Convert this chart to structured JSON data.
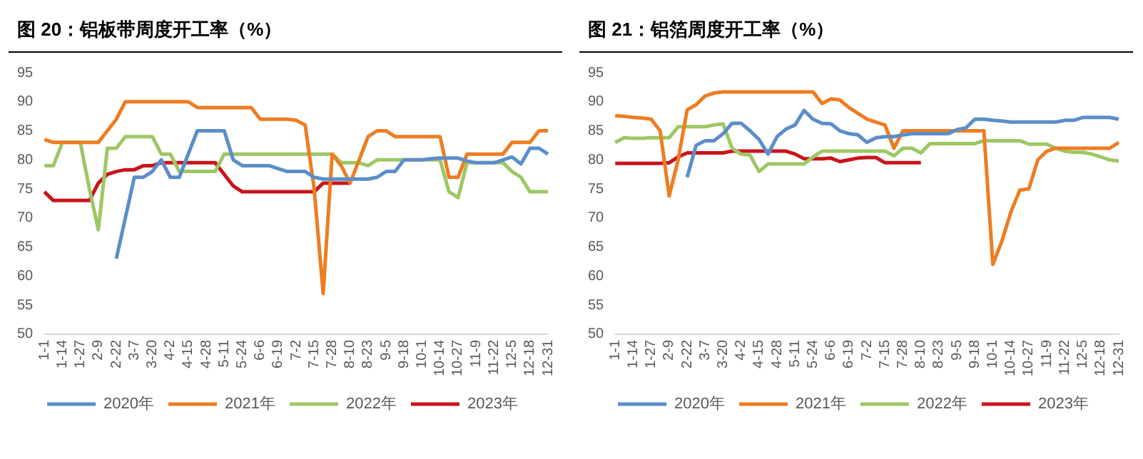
{
  "chart_data": [
    {
      "type": "line",
      "title": "图 20：铝板带周度开工率（%）",
      "categories": [
        "1-1",
        null,
        "1-14",
        null,
        "1-27",
        null,
        "2-9",
        null,
        "2-22",
        null,
        "3-7",
        null,
        "3-20",
        null,
        "4-2",
        null,
        "4-15",
        null,
        "4-28",
        null,
        "5-11",
        null,
        "5-24",
        null,
        "6-6",
        null,
        "6-19",
        null,
        "7-2",
        null,
        "7-15",
        null,
        "7-28",
        null,
        "8-10",
        null,
        "8-23",
        null,
        "9-5",
        null,
        "9-18",
        null,
        "10-1",
        null,
        "10-14",
        null,
        "10-27",
        null,
        "11-9",
        null,
        "11-22",
        null,
        "12-5",
        null,
        "12-18",
        null,
        "12-31"
      ],
      "ylim": [
        50,
        95
      ],
      "yticks": [
        50,
        55,
        60,
        65,
        70,
        75,
        80,
        85,
        90,
        95
      ],
      "legend": "bottom",
      "marker": "none",
      "series": [
        {
          "name": "2020年",
          "color": "#5b8ec9",
          "values": [
            null,
            null,
            null,
            null,
            null,
            null,
            null,
            null,
            63,
            70,
            77,
            77,
            78,
            80,
            77,
            77,
            81,
            85,
            85,
            85,
            85,
            80,
            79,
            79,
            79,
            79,
            78.5,
            78,
            78,
            78,
            77,
            76.7,
            76.7,
            76.7,
            76.7,
            76.7,
            76.7,
            77,
            78,
            78,
            80,
            80,
            80,
            80.2,
            80.3,
            80.3,
            80.3,
            79.8,
            79.5,
            79.5,
            79.5,
            80,
            80.5,
            79.3,
            82,
            82,
            81
          ]
        },
        {
          "name": "2021年",
          "color": "#ed7d22",
          "values": [
            83.5,
            83,
            83,
            83,
            83,
            83,
            83,
            85,
            87,
            90,
            90,
            90,
            90,
            90,
            90,
            90,
            90,
            89,
            89,
            89,
            89,
            89,
            89,
            89,
            87,
            87,
            87,
            87,
            86.8,
            86,
            75,
            57,
            81,
            79,
            76,
            80,
            84,
            85,
            85,
            84,
            84,
            84,
            84,
            84,
            84,
            77,
            77,
            81,
            81,
            81,
            81,
            81,
            83,
            83,
            83,
            85,
            85
          ]
        },
        {
          "name": "2022年",
          "color": "#9dc764",
          "values": [
            79,
            79,
            83,
            83,
            83,
            75,
            68,
            82,
            82,
            84,
            84,
            84,
            84,
            81,
            81,
            78,
            78,
            78,
            78,
            78,
            81,
            81,
            81,
            81,
            81,
            81,
            81,
            81,
            81,
            81,
            81,
            81,
            81,
            79.5,
            79.5,
            79.5,
            79,
            80,
            80,
            80,
            80,
            80,
            80,
            80,
            80,
            74.5,
            73.5,
            79.5,
            79.5,
            79.5,
            79.5,
            79.5,
            78,
            77,
            74.5,
            74.5,
            74.5
          ]
        },
        {
          "name": "2023年",
          "color": "#c8151b",
          "values": [
            74.5,
            73,
            73,
            73,
            73,
            73,
            76,
            77.5,
            78,
            78.3,
            78.3,
            79,
            79,
            79.5,
            79.5,
            79.5,
            79.5,
            79.5,
            79.5,
            79.5,
            77.5,
            75.5,
            74.5,
            74.5,
            74.5,
            74.5,
            74.5,
            74.5,
            74.5,
            74.5,
            74.5,
            76,
            76,
            76,
            76,
            null,
            null,
            null,
            null,
            null,
            null,
            null,
            null,
            null,
            null,
            null,
            null,
            null,
            null,
            null,
            null,
            null,
            null,
            null,
            null,
            null,
            null
          ]
        }
      ]
    },
    {
      "type": "line",
      "title": "图 21：铝箔周度开工率（%）",
      "categories": [
        "1-1",
        null,
        "1-14",
        null,
        "1-27",
        null,
        "2-9",
        null,
        "2-22",
        null,
        "3-7",
        null,
        "3-20",
        null,
        "4-2",
        null,
        "4-15",
        null,
        "4-28",
        null,
        "5-11",
        null,
        "5-24",
        null,
        "6-6",
        null,
        "6-19",
        null,
        "7-2",
        null,
        "7-15",
        null,
        "7-28",
        null,
        "8-10",
        null,
        "8-23",
        null,
        "9-5",
        null,
        "9-18",
        null,
        "10-1",
        null,
        "10-14",
        null,
        "10-27",
        null,
        "11-9",
        null,
        "11-22",
        null,
        "12-5",
        null,
        "12-18",
        null,
        "12-31"
      ],
      "ylim": [
        50,
        95
      ],
      "yticks": [
        50,
        55,
        60,
        65,
        70,
        75,
        80,
        85,
        90,
        95
      ],
      "legend": "bottom",
      "marker": "none",
      "series": [
        {
          "name": "2020年",
          "color": "#5b8ec9",
          "values": [
            null,
            null,
            null,
            null,
            null,
            null,
            null,
            null,
            77,
            82.5,
            83.3,
            83.3,
            84.5,
            86.3,
            86.3,
            85,
            83.5,
            81,
            84,
            85.3,
            86,
            88.5,
            87,
            86.3,
            86.2,
            85,
            84.5,
            84.3,
            83,
            83.8,
            84,
            84,
            84.3,
            84.5,
            84.5,
            84.5,
            84.5,
            84.5,
            85.2,
            85.5,
            87,
            87,
            86.8,
            86.7,
            86.5,
            86.5,
            86.5,
            86.5,
            86.5,
            86.5,
            86.8,
            86.8,
            87.3,
            87.3,
            87.3,
            87.3,
            87
          ]
        },
        {
          "name": "2021年",
          "color": "#ed7d22",
          "values": [
            87.6,
            87.5,
            87.3,
            87.2,
            87,
            85,
            73.8,
            80,
            88.6,
            89.5,
            91,
            91.5,
            91.7,
            91.7,
            91.7,
            91.7,
            91.7,
            91.7,
            91.7,
            91.7,
            91.7,
            91.7,
            91.7,
            89.7,
            90.5,
            90.3,
            89,
            88,
            87,
            86.5,
            86,
            82,
            85,
            85,
            85,
            85,
            85,
            85,
            85,
            85,
            85,
            85,
            62,
            66,
            71,
            74.8,
            75,
            80,
            81.5,
            82,
            82,
            82,
            82,
            82,
            82,
            82,
            83
          ]
        },
        {
          "name": "2022年",
          "color": "#9dc764",
          "values": [
            83,
            83.8,
            83.7,
            83.7,
            83.8,
            83.8,
            83.8,
            85.7,
            85.7,
            85.7,
            85.7,
            86,
            86.2,
            82,
            81,
            80.8,
            78,
            79.3,
            79.3,
            79.3,
            79.3,
            79.3,
            80.5,
            81.5,
            81.5,
            81.5,
            81.5,
            81.5,
            81.5,
            81.5,
            81.5,
            80.7,
            82,
            82,
            81.2,
            82.8,
            82.8,
            82.8,
            82.8,
            82.8,
            82.8,
            83.3,
            83.3,
            83.3,
            83.3,
            83.3,
            82.7,
            82.7,
            82.7,
            82,
            81.5,
            81.3,
            81.3,
            81,
            80.5,
            80,
            79.8
          ]
        },
        {
          "name": "2023年",
          "color": "#c8151b",
          "values": [
            79.4,
            79.4,
            79.4,
            79.4,
            79.4,
            79.4,
            79.5,
            80.5,
            81.2,
            81.2,
            81.2,
            81.2,
            81.2,
            81.5,
            81.5,
            81.5,
            81.5,
            81.5,
            81.5,
            81.5,
            81,
            80.2,
            80.2,
            80.2,
            80.3,
            79.7,
            80,
            80.3,
            80.4,
            80.4,
            79.5,
            79.5,
            79.5,
            79.5,
            79.5,
            null,
            null,
            null,
            null,
            null,
            null,
            null,
            null,
            null,
            null,
            null,
            null,
            null,
            null,
            null,
            null,
            null,
            null,
            null,
            null,
            null,
            null
          ]
        }
      ]
    }
  ]
}
